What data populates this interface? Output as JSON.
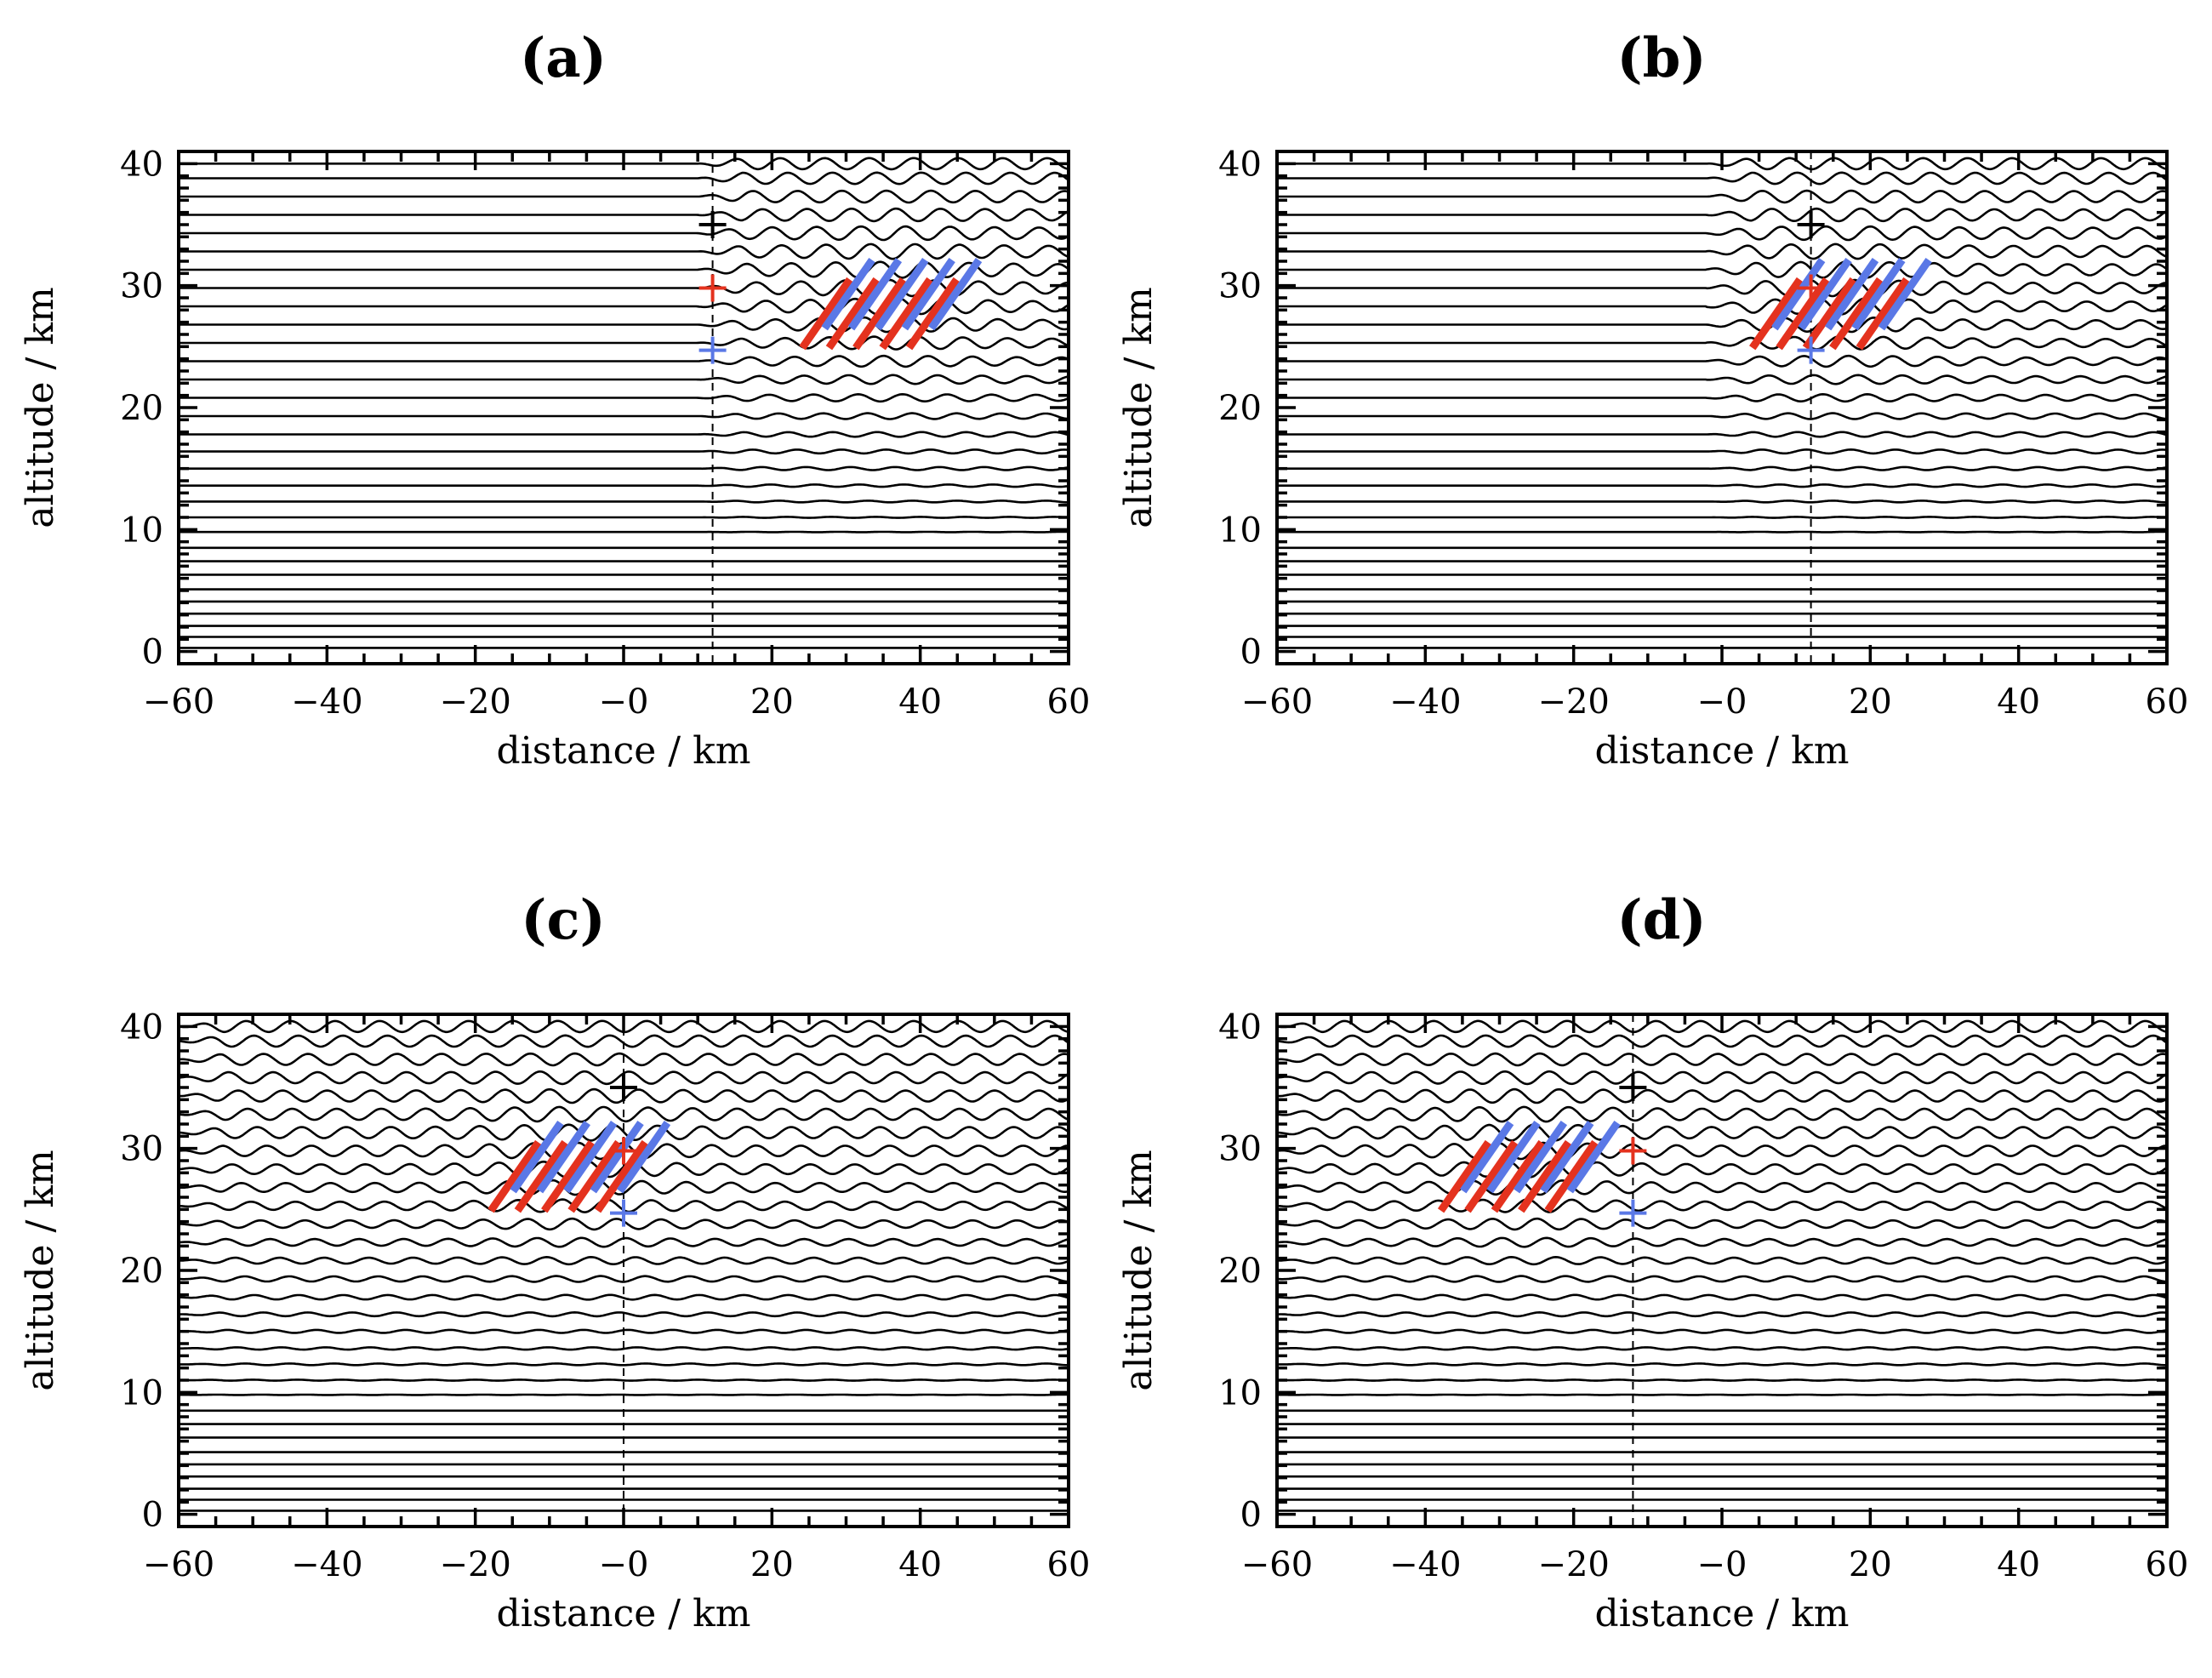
{
  "chart_data": [
    {
      "type": "line",
      "panel": "(a)",
      "title": "(a)",
      "xlabel": "distance / km",
      "ylabel": "altitude / km",
      "xlim": [
        -60,
        60
      ],
      "ylim": [
        -1,
        41
      ],
      "xticks": [
        -60,
        -40,
        -20,
        0,
        20,
        40,
        60
      ],
      "xtick_labels": [
        "−60",
        "−40",
        "−20",
        "−0",
        "20",
        "40",
        "60"
      ],
      "yticks": [
        0,
        10,
        20,
        30,
        40
      ],
      "ytick_labels": [
        "0",
        "10",
        "20",
        "30",
        "40"
      ],
      "isentropes": {
        "baseline_altitudes_km": [
          0.3,
          1.2,
          2.1,
          3.1,
          4.1,
          5.1,
          6.3,
          7.4,
          8.5,
          9.8,
          11.0,
          12.3,
          13.6,
          15.0,
          16.4,
          17.8,
          19.3,
          20.8,
          22.3,
          23.8,
          25.3,
          26.8,
          28.3,
          29.8,
          31.3,
          32.8,
          34.3,
          35.8,
          37.3,
          38.8,
          40.0
        ],
        "wavelength_km": 6,
        "wave_start_x_km": 10,
        "wave_lower_limit_km": 9
      },
      "dashed_line_x_km": 12,
      "markers": [
        {
          "color": "black",
          "x": 12,
          "y": 35
        },
        {
          "color": "red",
          "x": 12,
          "y": 29.8
        },
        {
          "color": "blue",
          "x": 12,
          "y": 24.7
        }
      ],
      "packet": {
        "center_x_km": 36,
        "center_y_km": 28.5,
        "width_km": 18,
        "height_km": 7
      }
    },
    {
      "type": "line",
      "panel": "(b)",
      "title": "(b)",
      "xlabel": "distance / km",
      "ylabel": "altitude / km",
      "xlim": [
        -60,
        60
      ],
      "ylim": [
        -1,
        41
      ],
      "xticks": [
        -60,
        -40,
        -20,
        0,
        20,
        40,
        60
      ],
      "xtick_labels": [
        "−60",
        "−40",
        "−20",
        "−0",
        "20",
        "40",
        "60"
      ],
      "yticks": [
        0,
        10,
        20,
        30,
        40
      ],
      "ytick_labels": [
        "0",
        "10",
        "20",
        "30",
        "40"
      ],
      "isentropes": {
        "baseline_altitudes_km": [
          0.3,
          1.2,
          2.1,
          3.1,
          4.1,
          5.1,
          6.3,
          7.4,
          8.5,
          9.8,
          11.0,
          12.3,
          13.6,
          15.0,
          16.4,
          17.8,
          19.3,
          20.8,
          22.3,
          23.8,
          25.3,
          26.8,
          28.3,
          29.8,
          31.3,
          32.8,
          34.3,
          35.8,
          37.3,
          38.8,
          40.0
        ],
        "wavelength_km": 6,
        "wave_start_x_km": -2,
        "wave_lower_limit_km": 9
      },
      "dashed_line_x_km": 12,
      "markers": [
        {
          "color": "black",
          "x": 12,
          "y": 35
        },
        {
          "color": "red",
          "x": 12,
          "y": 29.8
        },
        {
          "color": "blue",
          "x": 12,
          "y": 24.7
        }
      ],
      "packet": {
        "center_x_km": 16,
        "center_y_km": 28.5,
        "width_km": 18,
        "height_km": 7
      }
    },
    {
      "type": "line",
      "panel": "(c)",
      "title": "(c)",
      "xlabel": "distance / km",
      "ylabel": "altitude / km",
      "xlim": [
        -60,
        60
      ],
      "ylim": [
        -1,
        41
      ],
      "xticks": [
        -60,
        -40,
        -20,
        0,
        20,
        40,
        60
      ],
      "xtick_labels": [
        "−60",
        "−40",
        "−20",
        "−0",
        "20",
        "40",
        "60"
      ],
      "yticks": [
        0,
        10,
        20,
        30,
        40
      ],
      "ytick_labels": [
        "0",
        "10",
        "20",
        "30",
        "40"
      ],
      "isentropes": {
        "baseline_altitudes_km": [
          0.3,
          1.2,
          2.1,
          3.1,
          4.1,
          5.1,
          6.3,
          7.4,
          8.5,
          9.8,
          11.0,
          12.3,
          13.6,
          15.0,
          16.4,
          17.8,
          19.3,
          20.8,
          22.3,
          23.8,
          25.3,
          26.8,
          28.3,
          29.8,
          31.3,
          32.8,
          34.3,
          35.8,
          37.3,
          38.8,
          40.0
        ],
        "wavelength_km": 6,
        "wave_start_x_km": -60,
        "wave_lower_limit_km": 9
      },
      "dashed_line_x_km": 0,
      "markers": [
        {
          "color": "black",
          "x": 0,
          "y": 35
        },
        {
          "color": "red",
          "x": 0,
          "y": 29.8
        },
        {
          "color": "blue",
          "x": 0,
          "y": 24.7
        }
      ],
      "packet": {
        "center_x_km": -6,
        "center_y_km": 28.5,
        "width_km": 18,
        "height_km": 7
      }
    },
    {
      "type": "line",
      "panel": "(d)",
      "title": "(d)",
      "xlabel": "distance / km",
      "ylabel": "altitude / km",
      "xlim": [
        -60,
        60
      ],
      "ylim": [
        -1,
        41
      ],
      "xticks": [
        -60,
        -40,
        -20,
        0,
        20,
        40,
        60
      ],
      "xtick_labels": [
        "−60",
        "−40",
        "−20",
        "−0",
        "20",
        "40",
        "60"
      ],
      "yticks": [
        0,
        10,
        20,
        30,
        40
      ],
      "ytick_labels": [
        "0",
        "10",
        "20",
        "30",
        "40"
      ],
      "isentropes": {
        "baseline_altitudes_km": [
          0.3,
          1.2,
          2.1,
          3.1,
          4.1,
          5.1,
          6.3,
          7.4,
          8.5,
          9.8,
          11.0,
          12.3,
          13.6,
          15.0,
          16.4,
          17.8,
          19.3,
          20.8,
          22.3,
          23.8,
          25.3,
          26.8,
          28.3,
          29.8,
          31.3,
          32.8,
          34.3,
          35.8,
          37.3,
          38.8,
          40.0
        ],
        "wavelength_km": 6,
        "wave_start_x_km": -60,
        "wave_lower_limit_km": 9
      },
      "dashed_line_x_km": -12,
      "markers": [
        {
          "color": "black",
          "x": -12,
          "y": 35
        },
        {
          "color": "red",
          "x": -12,
          "y": 29.8
        },
        {
          "color": "blue",
          "x": -12,
          "y": 24.7
        }
      ],
      "packet": {
        "center_x_km": -26,
        "center_y_km": 28.5,
        "width_km": 18,
        "height_km": 7
      }
    }
  ],
  "colors": {
    "red": "#e4321e",
    "blue": "#5a78e6",
    "black": "#000000"
  }
}
